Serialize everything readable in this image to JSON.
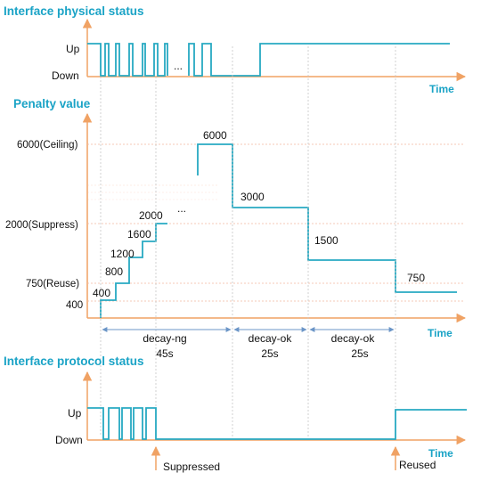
{
  "sections": {
    "physical_title": "Interface physical status",
    "penalty_title": "Penalty value",
    "protocol_title": "Interface protocol status"
  },
  "axis": {
    "time_label": "Time",
    "up_label": "Up",
    "down_label": "Down",
    "ellipsis": "..."
  },
  "penalty": {
    "ticks": {
      "ceiling": "6000(Ceiling)",
      "suppress": "2000(Suppress)",
      "reuse": "750(Reuse)",
      "start": "400"
    },
    "step_labels": [
      "400",
      "800",
      "1200",
      "1600",
      "2000"
    ],
    "decay_labels": [
      "6000",
      "3000",
      "1500",
      "750"
    ],
    "ellipsis": "..."
  },
  "phases": [
    {
      "name": "decay-ng",
      "duration": "45s"
    },
    {
      "name": "decay-ok",
      "duration": "25s"
    },
    {
      "name": "decay-ok",
      "duration": "25s"
    }
  ],
  "events": {
    "suppressed": "Suppressed",
    "reused": "Reused"
  },
  "colors": {
    "title": "#1aa3c6",
    "signal": "#27a9c2",
    "axis": "#f0a264",
    "guide": "#f4b9a0",
    "dimension": "#6b95c7"
  }
}
